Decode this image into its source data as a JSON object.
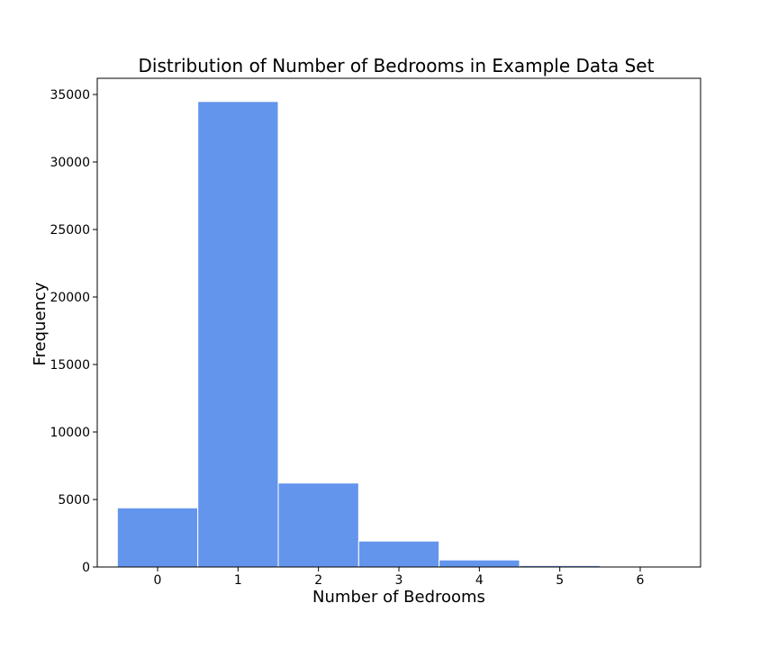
{
  "chart_data": {
    "type": "bar",
    "title": "Distribution of Number of Bedrooms in Example Data Set",
    "xlabel": "Number of Bedrooms",
    "ylabel": "Frequency",
    "categories": [
      "0",
      "1",
      "2",
      "3",
      "4",
      "5",
      "6"
    ],
    "values": [
      4380,
      34480,
      6220,
      1920,
      520,
      110,
      20
    ],
    "xlim": [
      -0.75,
      6.75
    ],
    "ylim": [
      0,
      36200
    ],
    "x_ticks": [
      0,
      1,
      2,
      3,
      4,
      5,
      6
    ],
    "y_ticks": [
      0,
      5000,
      10000,
      15000,
      20000,
      25000,
      30000,
      35000
    ],
    "bar_color": "#6495ED",
    "bar_edge_color": "#ffffff",
    "grid": false,
    "legend": "none"
  }
}
